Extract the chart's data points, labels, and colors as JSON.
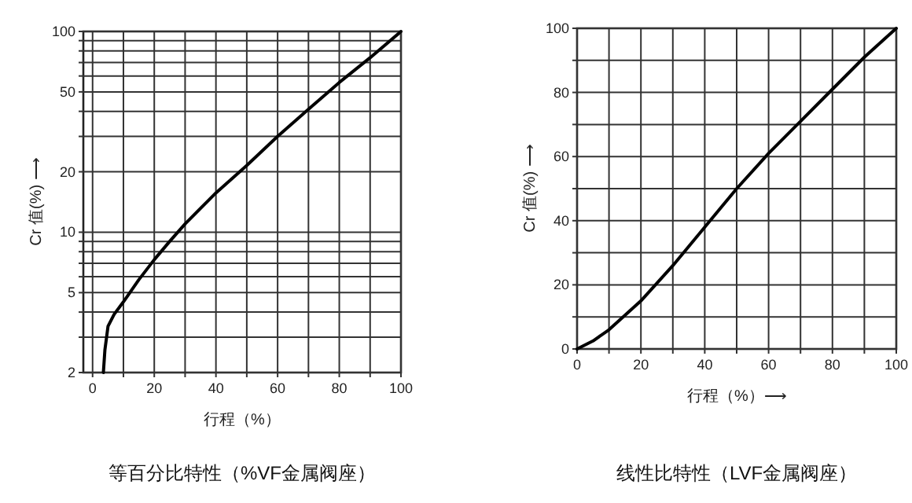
{
  "chart_data": [
    {
      "type": "line",
      "title": "等百分比特性（%VF金属阀座）",
      "xlabel": "行程（%）",
      "ylabel": "Cr 值(%) ⟶",
      "log": "y",
      "grid": true,
      "xlim": [
        -3,
        100
      ],
      "ylim": [
        2,
        100
      ],
      "xticks": [
        0,
        {
          "value": 10,
          "label": null
        },
        20,
        {
          "value": 30,
          "label": null
        },
        40,
        {
          "value": 50,
          "label": null
        },
        60,
        {
          "value": 70,
          "label": null
        },
        80,
        {
          "value": 90,
          "label": null
        },
        100
      ],
      "yticks": [
        2,
        {
          "value": 3,
          "label": null
        },
        {
          "value": 4,
          "label": null
        },
        5,
        {
          "value": 6,
          "label": null
        },
        {
          "value": 7,
          "label": null
        },
        {
          "value": 8,
          "label": null
        },
        {
          "value": 9,
          "label": null
        },
        10,
        20,
        {
          "value": 30,
          "label": null
        },
        {
          "value": 40,
          "label": null
        },
        50,
        {
          "value": 60,
          "label": null
        },
        {
          "value": 70,
          "label": null
        },
        {
          "value": 80,
          "label": null
        },
        {
          "value": 90,
          "label": null
        },
        100
      ],
      "series": [
        {
          "color": "#000000",
          "x": [
            3.5,
            4,
            5,
            7,
            10,
            15,
            20,
            25,
            30,
            40,
            50,
            60,
            70,
            80,
            90,
            100
          ],
          "values": [
            2,
            2.6,
            3.4,
            3.9,
            4.5,
            5.8,
            7.3,
            9,
            11,
            15.7,
            21.5,
            30,
            41,
            55.7,
            74,
            100
          ]
        }
      ]
    },
    {
      "type": "line",
      "title": "线性比特性（LVF金属阀座）",
      "xlabel": "行程（%）⟶",
      "ylabel": "Cr 值(%) ⟶",
      "grid": true,
      "xlim": [
        0,
        100
      ],
      "ylim": [
        0,
        100
      ],
      "xticks": [
        0,
        {
          "value": 10,
          "label": null
        },
        20,
        {
          "value": 30,
          "label": null
        },
        40,
        {
          "value": 50,
          "label": null
        },
        60,
        {
          "value": 70,
          "label": null
        },
        80,
        {
          "value": 90,
          "label": null
        },
        100
      ],
      "yticks": [
        0,
        {
          "value": 10,
          "label": null
        },
        20,
        {
          "value": 30,
          "label": null
        },
        40,
        {
          "value": 50,
          "label": null
        },
        60,
        {
          "value": 70,
          "label": null
        },
        80,
        {
          "value": 90,
          "label": null
        },
        100
      ],
      "series": [
        {
          "color": "#000000",
          "x": [
            0,
            5,
            10,
            20,
            30,
            40,
            50,
            60,
            70,
            80,
            90,
            100
          ],
          "values": [
            0,
            2.5,
            6,
            15,
            26,
            38,
            50,
            61,
            71,
            81,
            91,
            100
          ]
        }
      ]
    }
  ]
}
